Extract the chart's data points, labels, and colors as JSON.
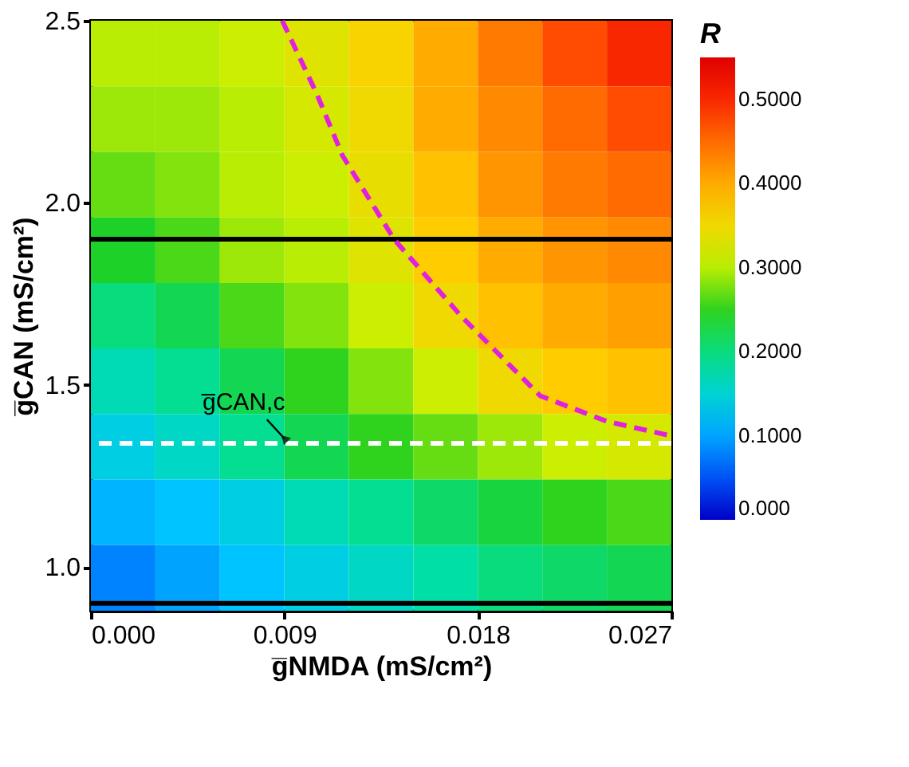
{
  "chart_data": {
    "type": "heatmap",
    "xlabel": "g̅NMDA (mS/cm²)",
    "ylabel": "g̅CAN (mS/cm²)",
    "legend_title": "R",
    "x": [
      0.0015,
      0.0045,
      0.0075,
      0.0105,
      0.0135,
      0.0165,
      0.0195,
      0.0225,
      0.0255
    ],
    "y": [
      2.41,
      2.23,
      2.05,
      1.87,
      1.69,
      1.51,
      1.33,
      1.15,
      0.97
    ],
    "cells": [
      [
        0.3,
        0.3,
        0.31,
        0.33,
        0.36,
        0.4,
        0.44,
        0.47,
        0.5
      ],
      [
        0.29,
        0.29,
        0.3,
        0.32,
        0.35,
        0.4,
        0.43,
        0.45,
        0.47
      ],
      [
        0.27,
        0.28,
        0.3,
        0.31,
        0.34,
        0.38,
        0.42,
        0.44,
        0.45
      ],
      [
        0.24,
        0.26,
        0.29,
        0.3,
        0.33,
        0.37,
        0.4,
        0.42,
        0.43
      ],
      [
        0.2,
        0.22,
        0.26,
        0.28,
        0.31,
        0.35,
        0.38,
        0.4,
        0.41
      ],
      [
        0.17,
        0.19,
        0.22,
        0.25,
        0.28,
        0.31,
        0.35,
        0.37,
        0.38
      ],
      [
        0.14,
        0.16,
        0.19,
        0.22,
        0.25,
        0.27,
        0.29,
        0.31,
        0.32
      ],
      [
        0.11,
        0.12,
        0.14,
        0.17,
        0.19,
        0.21,
        0.23,
        0.25,
        0.26
      ],
      [
        0.08,
        0.1,
        0.12,
        0.14,
        0.16,
        0.18,
        0.2,
        0.21,
        0.22
      ]
    ],
    "xlim": [
      0,
      0.027
    ],
    "xticks": [
      {
        "value": 0,
        "label": "0.000"
      },
      0.009,
      0.018,
      0.027
    ],
    "ylim": [
      0.88,
      2.5
    ],
    "yticks": [
      {
        "value": 1,
        "label": "1.0"
      },
      1.5,
      {
        "value": 2,
        "label": "2.0"
      },
      2.5
    ],
    "clim": [
      0,
      0.55
    ],
    "cticks": [
      {
        "value": 0,
        "label": "0.000"
      },
      {
        "value": 0.1,
        "label": "0.1000"
      },
      {
        "value": 0.2,
        "label": "0.2000"
      },
      {
        "value": 0.3,
        "label": "0.3000"
      },
      {
        "value": 0.4,
        "label": "0.4000"
      },
      {
        "value": 0.5,
        "label": "0.5000"
      }
    ],
    "series": [
      {
        "type": "line",
        "color": "#e020e0",
        "line_style": "dashed",
        "x": [
          0.0089,
          0.0105,
          0.0117,
          0.0141,
          0.0172,
          0.0209,
          0.024,
          0.027
        ],
        "values": [
          2.5,
          2.3,
          2.13,
          1.9,
          1.69,
          1.47,
          1.4,
          1.36
        ]
      }
    ],
    "ref_lines": [
      {
        "axis": "y",
        "value": 1.9,
        "color": "#000000",
        "line_style": "solid"
      },
      {
        "axis": "y",
        "value": 0.9,
        "color": "#000000",
        "line_style": "solid"
      },
      {
        "axis": "y",
        "value": 1.34,
        "color": "#ffffff",
        "line_style": "dashed"
      }
    ],
    "annotations": [
      {
        "text": "g̅CAN,c",
        "x": 0.009,
        "y": 1.34
      }
    ],
    "grid": false
  }
}
